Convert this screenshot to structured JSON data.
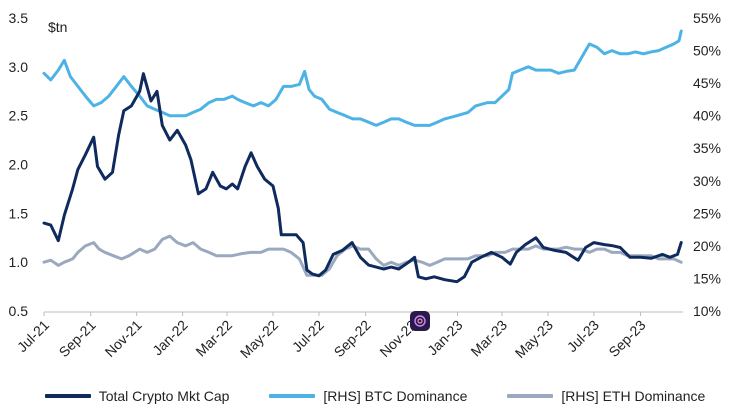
{
  "chart_data": {
    "type": "line",
    "ylabel": "$tn",
    "ylim": [
      0.5,
      3.5
    ],
    "y_ticks": [
      "0.5",
      "1.0",
      "1.5",
      "2.0",
      "2.5",
      "3.0",
      "3.5"
    ],
    "y2lim": [
      10,
      55
    ],
    "y2_ticks": [
      "10%",
      "15%",
      "20%",
      "25%",
      "30%",
      "35%",
      "40%",
      "45%",
      "50%",
      "55%"
    ],
    "x_ticks": [
      "Jul-21",
      "Sep-21",
      "Nov-21",
      "Jan-22",
      "Mar-22",
      "May-22",
      "Jul-22",
      "Sep-22",
      "Nov-22",
      "Jan-23",
      "Mar-23",
      "May-23",
      "Jul-23",
      "Sep-23"
    ],
    "grid": false,
    "legend_position": "bottom",
    "series": [
      {
        "name": "Total Crypto Mkt Cap",
        "axis": "left",
        "color": "#0f2a5c",
        "points": [
          [
            "2021-07-01",
            1.4
          ],
          [
            "2021-07-10",
            1.38
          ],
          [
            "2021-07-20",
            1.22
          ],
          [
            "2021-07-28",
            1.48
          ],
          [
            "2021-08-08",
            1.75
          ],
          [
            "2021-08-15",
            1.95
          ],
          [
            "2021-08-25",
            2.1
          ],
          [
            "2021-09-05",
            2.28
          ],
          [
            "2021-09-10",
            1.98
          ],
          [
            "2021-09-20",
            1.85
          ],
          [
            "2021-09-30",
            1.92
          ],
          [
            "2021-10-08",
            2.3
          ],
          [
            "2021-10-15",
            2.55
          ],
          [
            "2021-10-25",
            2.6
          ],
          [
            "2021-11-05",
            2.75
          ],
          [
            "2021-11-10",
            2.93
          ],
          [
            "2021-11-20",
            2.65
          ],
          [
            "2021-11-28",
            2.75
          ],
          [
            "2021-12-05",
            2.4
          ],
          [
            "2021-12-15",
            2.25
          ],
          [
            "2021-12-25",
            2.35
          ],
          [
            "2022-01-05",
            2.2
          ],
          [
            "2022-01-12",
            2.05
          ],
          [
            "2022-01-22",
            1.7
          ],
          [
            "2022-02-01",
            1.75
          ],
          [
            "2022-02-10",
            1.92
          ],
          [
            "2022-02-20",
            1.78
          ],
          [
            "2022-02-28",
            1.75
          ],
          [
            "2022-03-08",
            1.8
          ],
          [
            "2022-03-15",
            1.75
          ],
          [
            "2022-03-25",
            1.98
          ],
          [
            "2022-04-02",
            2.12
          ],
          [
            "2022-04-10",
            1.98
          ],
          [
            "2022-04-20",
            1.85
          ],
          [
            "2022-05-01",
            1.78
          ],
          [
            "2022-05-08",
            1.55
          ],
          [
            "2022-05-12",
            1.28
          ],
          [
            "2022-05-20",
            1.28
          ],
          [
            "2022-06-01",
            1.28
          ],
          [
            "2022-06-10",
            1.2
          ],
          [
            "2022-06-15",
            0.92
          ],
          [
            "2022-06-22",
            0.88
          ],
          [
            "2022-07-01",
            0.86
          ],
          [
            "2022-07-10",
            0.92
          ],
          [
            "2022-07-20",
            1.08
          ],
          [
            "2022-08-01",
            1.12
          ],
          [
            "2022-08-14",
            1.2
          ],
          [
            "2022-08-25",
            1.05
          ],
          [
            "2022-09-05",
            0.97
          ],
          [
            "2022-09-15",
            0.95
          ],
          [
            "2022-09-25",
            0.93
          ],
          [
            "2022-10-05",
            0.95
          ],
          [
            "2022-10-15",
            0.93
          ],
          [
            "2022-10-28",
            1.0
          ],
          [
            "2022-11-05",
            1.05
          ],
          [
            "2022-11-10",
            0.85
          ],
          [
            "2022-11-20",
            0.83
          ],
          [
            "2022-12-01",
            0.85
          ],
          [
            "2022-12-15",
            0.82
          ],
          [
            "2022-12-31",
            0.8
          ],
          [
            "2023-01-10",
            0.85
          ],
          [
            "2023-01-20",
            1.0
          ],
          [
            "2023-02-01",
            1.05
          ],
          [
            "2023-02-15",
            1.1
          ],
          [
            "2023-03-01",
            1.05
          ],
          [
            "2023-03-12",
            0.98
          ],
          [
            "2023-03-20",
            1.1
          ],
          [
            "2023-04-01",
            1.18
          ],
          [
            "2023-04-15",
            1.25
          ],
          [
            "2023-04-25",
            1.15
          ],
          [
            "2023-05-10",
            1.12
          ],
          [
            "2023-05-25",
            1.1
          ],
          [
            "2023-06-10",
            1.02
          ],
          [
            "2023-06-20",
            1.15
          ],
          [
            "2023-07-01",
            1.2
          ],
          [
            "2023-07-15",
            1.18
          ],
          [
            "2023-07-25",
            1.17
          ],
          [
            "2023-08-05",
            1.15
          ],
          [
            "2023-08-18",
            1.05
          ],
          [
            "2023-09-01",
            1.05
          ],
          [
            "2023-09-15",
            1.04
          ],
          [
            "2023-09-30",
            1.08
          ],
          [
            "2023-10-10",
            1.05
          ],
          [
            "2023-10-20",
            1.08
          ],
          [
            "2023-10-25",
            1.2
          ]
        ]
      },
      {
        "name": "[RHS] BTC Dominance",
        "axis": "right",
        "color": "#4db3e6",
        "points": [
          [
            "2021-07-01",
            46.5
          ],
          [
            "2021-07-10",
            45.5
          ],
          [
            "2021-07-20",
            47.0
          ],
          [
            "2021-07-28",
            48.5
          ],
          [
            "2021-08-05",
            46.0
          ],
          [
            "2021-08-15",
            44.5
          ],
          [
            "2021-08-25",
            43.0
          ],
          [
            "2021-09-05",
            41.5
          ],
          [
            "2021-09-15",
            42.0
          ],
          [
            "2021-09-25",
            43.0
          ],
          [
            "2021-10-05",
            44.5
          ],
          [
            "2021-10-15",
            46.0
          ],
          [
            "2021-10-25",
            44.5
          ],
          [
            "2021-11-05",
            43.0
          ],
          [
            "2021-11-15",
            41.5
          ],
          [
            "2021-11-25",
            41.0
          ],
          [
            "2021-12-05",
            40.5
          ],
          [
            "2021-12-15",
            40.0
          ],
          [
            "2021-12-25",
            40.0
          ],
          [
            "2022-01-05",
            40.0
          ],
          [
            "2022-01-15",
            40.5
          ],
          [
            "2022-01-25",
            41.0
          ],
          [
            "2022-02-05",
            42.0
          ],
          [
            "2022-02-15",
            42.5
          ],
          [
            "2022-02-25",
            42.5
          ],
          [
            "2022-03-08",
            43.0
          ],
          [
            "2022-03-15",
            42.5
          ],
          [
            "2022-03-25",
            42.0
          ],
          [
            "2022-04-05",
            41.5
          ],
          [
            "2022-04-15",
            42.0
          ],
          [
            "2022-04-25",
            41.5
          ],
          [
            "2022-05-05",
            42.5
          ],
          [
            "2022-05-15",
            44.5
          ],
          [
            "2022-05-25",
            44.5
          ],
          [
            "2022-06-05",
            44.8
          ],
          [
            "2022-06-12",
            46.8
          ],
          [
            "2022-06-18",
            44.0
          ],
          [
            "2022-06-25",
            43.0
          ],
          [
            "2022-07-05",
            42.5
          ],
          [
            "2022-07-15",
            41.0
          ],
          [
            "2022-07-25",
            40.5
          ],
          [
            "2022-08-05",
            40.0
          ],
          [
            "2022-08-15",
            39.5
          ],
          [
            "2022-08-25",
            39.5
          ],
          [
            "2022-09-05",
            39.0
          ],
          [
            "2022-09-15",
            38.5
          ],
          [
            "2022-09-25",
            39.0
          ],
          [
            "2022-10-05",
            39.5
          ],
          [
            "2022-10-15",
            39.5
          ],
          [
            "2022-10-25",
            39.0
          ],
          [
            "2022-11-05",
            38.5
          ],
          [
            "2022-11-15",
            38.5
          ],
          [
            "2022-11-25",
            38.5
          ],
          [
            "2022-12-05",
            39.0
          ],
          [
            "2022-12-15",
            39.5
          ],
          [
            "2022-12-31",
            40.0
          ],
          [
            "2023-01-15",
            40.5
          ],
          [
            "2023-01-25",
            41.5
          ],
          [
            "2023-02-10",
            42.0
          ],
          [
            "2023-02-20",
            42.0
          ],
          [
            "2023-03-01",
            43.0
          ],
          [
            "2023-03-10",
            44.0
          ],
          [
            "2023-03-15",
            46.5
          ],
          [
            "2023-03-25",
            47.0
          ],
          [
            "2023-04-05",
            47.5
          ],
          [
            "2023-04-15",
            47.0
          ],
          [
            "2023-04-25",
            47.0
          ],
          [
            "2023-05-05",
            47.0
          ],
          [
            "2023-05-15",
            46.5
          ],
          [
            "2023-05-25",
            46.8
          ],
          [
            "2023-06-05",
            47.0
          ],
          [
            "2023-06-15",
            49.0
          ],
          [
            "2023-06-25",
            51.0
          ],
          [
            "2023-07-05",
            50.5
          ],
          [
            "2023-07-15",
            49.5
          ],
          [
            "2023-07-25",
            50.0
          ],
          [
            "2023-08-05",
            49.5
          ],
          [
            "2023-08-15",
            49.5
          ],
          [
            "2023-08-25",
            49.8
          ],
          [
            "2023-09-05",
            49.5
          ],
          [
            "2023-09-15",
            49.8
          ],
          [
            "2023-09-25",
            50.0
          ],
          [
            "2023-10-05",
            50.5
          ],
          [
            "2023-10-15",
            51.0
          ],
          [
            "2023-10-22",
            51.5
          ],
          [
            "2023-10-25",
            53.0
          ]
        ]
      },
      {
        "name": "[RHS] ETH Dominance",
        "axis": "right",
        "color": "#9aa9bf",
        "points": [
          [
            "2021-07-01",
            17.5
          ],
          [
            "2021-07-10",
            17.8
          ],
          [
            "2021-07-20",
            17.0
          ],
          [
            "2021-07-28",
            17.5
          ],
          [
            "2021-08-08",
            18.0
          ],
          [
            "2021-08-15",
            19.0
          ],
          [
            "2021-08-25",
            20.0
          ],
          [
            "2021-09-05",
            20.5
          ],
          [
            "2021-09-12",
            19.5
          ],
          [
            "2021-09-20",
            19.0
          ],
          [
            "2021-10-01",
            18.5
          ],
          [
            "2021-10-12",
            18.0
          ],
          [
            "2021-10-22",
            18.5
          ],
          [
            "2021-11-05",
            19.5
          ],
          [
            "2021-11-15",
            19.0
          ],
          [
            "2021-11-25",
            19.5
          ],
          [
            "2021-12-05",
            21.0
          ],
          [
            "2021-12-15",
            21.5
          ],
          [
            "2021-12-25",
            20.5
          ],
          [
            "2022-01-05",
            20.0
          ],
          [
            "2022-01-15",
            20.5
          ],
          [
            "2022-01-25",
            19.5
          ],
          [
            "2022-02-05",
            19.0
          ],
          [
            "2022-02-15",
            18.5
          ],
          [
            "2022-02-25",
            18.5
          ],
          [
            "2022-03-08",
            18.5
          ],
          [
            "2022-03-20",
            18.8
          ],
          [
            "2022-04-01",
            19.0
          ],
          [
            "2022-04-15",
            19.0
          ],
          [
            "2022-04-25",
            19.5
          ],
          [
            "2022-05-05",
            19.5
          ],
          [
            "2022-05-15",
            19.5
          ],
          [
            "2022-05-25",
            19.0
          ],
          [
            "2022-06-05",
            18.0
          ],
          [
            "2022-06-15",
            15.5
          ],
          [
            "2022-06-25",
            15.5
          ],
          [
            "2022-07-05",
            15.5
          ],
          [
            "2022-07-15",
            16.5
          ],
          [
            "2022-07-25",
            18.5
          ],
          [
            "2022-08-05",
            19.5
          ],
          [
            "2022-08-15",
            20.0
          ],
          [
            "2022-08-25",
            19.5
          ],
          [
            "2022-09-05",
            19.5
          ],
          [
            "2022-09-15",
            18.0
          ],
          [
            "2022-09-25",
            17.0
          ],
          [
            "2022-10-05",
            17.5
          ],
          [
            "2022-10-15",
            17.0
          ],
          [
            "2022-10-25",
            17.5
          ],
          [
            "2022-11-05",
            17.8
          ],
          [
            "2022-11-15",
            17.5
          ],
          [
            "2022-11-25",
            17.0
          ],
          [
            "2022-12-05",
            17.5
          ],
          [
            "2022-12-15",
            18.0
          ],
          [
            "2022-12-31",
            18.0
          ],
          [
            "2023-01-15",
            18.0
          ],
          [
            "2023-01-25",
            18.5
          ],
          [
            "2023-02-10",
            18.5
          ],
          [
            "2023-02-20",
            19.0
          ],
          [
            "2023-03-05",
            19.0
          ],
          [
            "2023-03-15",
            19.5
          ],
          [
            "2023-03-25",
            19.5
          ],
          [
            "2023-04-05",
            19.5
          ],
          [
            "2023-04-15",
            20.0
          ],
          [
            "2023-04-25",
            19.5
          ],
          [
            "2023-05-05",
            19.5
          ],
          [
            "2023-05-15",
            19.5
          ],
          [
            "2023-05-25",
            19.8
          ],
          [
            "2023-06-05",
            19.5
          ],
          [
            "2023-06-15",
            19.5
          ],
          [
            "2023-06-25",
            19.0
          ],
          [
            "2023-07-05",
            19.5
          ],
          [
            "2023-07-15",
            19.5
          ],
          [
            "2023-07-25",
            19.0
          ],
          [
            "2023-08-05",
            19.0
          ],
          [
            "2023-08-15",
            18.5
          ],
          [
            "2023-08-25",
            18.5
          ],
          [
            "2023-09-05",
            18.5
          ],
          [
            "2023-09-15",
            18.5
          ],
          [
            "2023-09-25",
            18.0
          ],
          [
            "2023-10-05",
            18.0
          ],
          [
            "2023-10-15",
            18.0
          ],
          [
            "2023-10-25",
            17.5
          ]
        ]
      }
    ]
  }
}
